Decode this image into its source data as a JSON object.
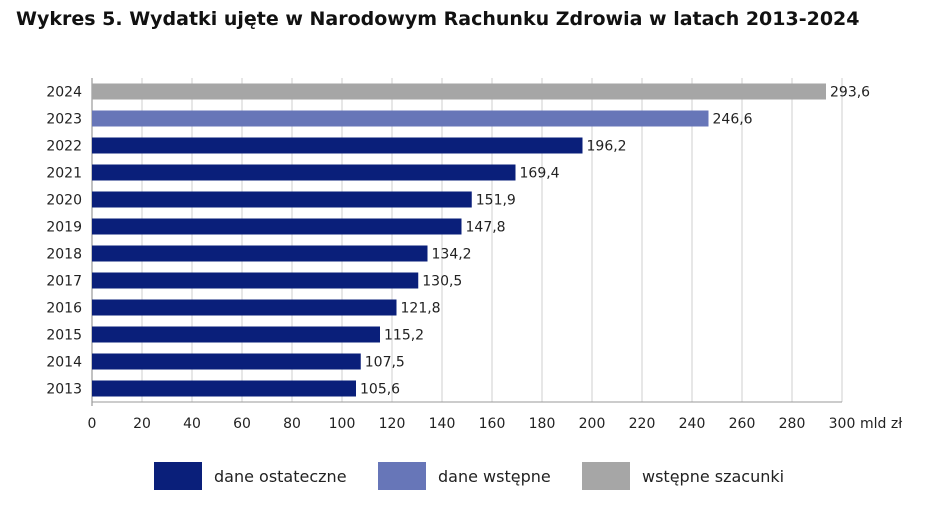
{
  "title": "Wykres 5. Wydatki ujęte w Narodowym Rachunku Zdrowia w latach 2013-2024",
  "colors": {
    "final": "#0a1f7a",
    "preliminary": "#6776b8",
    "estimate": "#a6a6a6",
    "grid": "#cfcfcf",
    "axis": "#9a9a9a",
    "text": "#222222"
  },
  "legend": [
    {
      "label": "dane ostateczne",
      "color_key": "final"
    },
    {
      "label": "dane wstępne",
      "color_key": "preliminary"
    },
    {
      "label": "wstępne szacunki",
      "color_key": "estimate"
    }
  ],
  "chart_data": {
    "type": "bar",
    "orientation": "horizontal",
    "categories": [
      "2024",
      "2023",
      "2022",
      "2021",
      "2020",
      "2019",
      "2018",
      "2017",
      "2016",
      "2015",
      "2014",
      "2013"
    ],
    "values": [
      293.6,
      246.6,
      196.2,
      169.4,
      151.9,
      147.8,
      134.2,
      130.5,
      121.8,
      115.2,
      107.5,
      105.6
    ],
    "value_labels": [
      "293,6",
      "246,6",
      "196,2",
      "169,4",
      "151,9",
      "147,8",
      "134,2",
      "130,5",
      "121,8",
      "115,2",
      "107,5",
      "105,6"
    ],
    "bar_types": [
      "estimate",
      "preliminary",
      "final",
      "final",
      "final",
      "final",
      "final",
      "final",
      "final",
      "final",
      "final",
      "final"
    ],
    "xlim": [
      0,
      300
    ],
    "x_ticks": [
      0,
      20,
      40,
      60,
      80,
      100,
      120,
      140,
      160,
      180,
      200,
      220,
      240,
      260,
      280,
      300
    ],
    "x_tick_labels": [
      "0",
      "20",
      "40",
      "60",
      "80",
      "100",
      "120",
      "140",
      "160",
      "180",
      "200",
      "220",
      "240",
      "260",
      "280",
      "300"
    ],
    "x_unit": "mld zł",
    "grid": true,
    "legend_position": "bottom"
  }
}
